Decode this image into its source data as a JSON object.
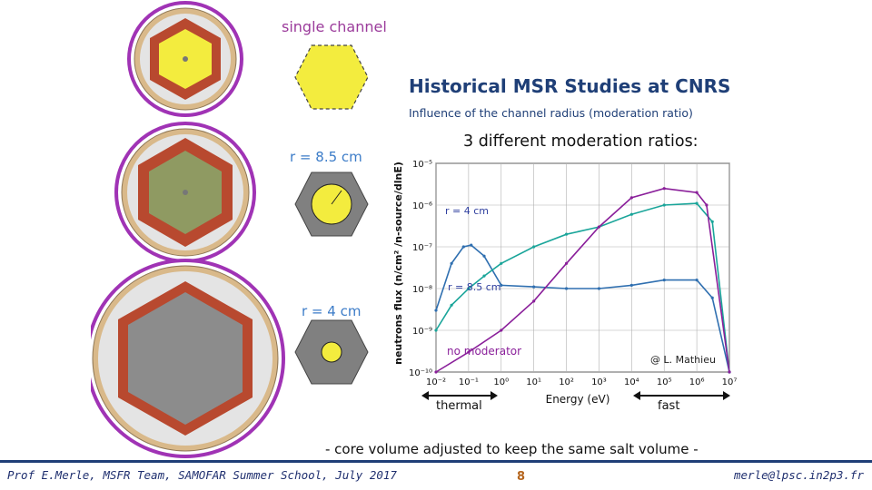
{
  "labels": {
    "single_channel": "single channel",
    "r_8_5": "r = 8.5 cm",
    "r_4": "r = 4 cm"
  },
  "title": "Historical MSR Studies at CNRS",
  "subtitle": "Influence of the channel radius (moderation ratio)",
  "heading": "3 different moderation ratios:",
  "chart_data": {
    "type": "line",
    "xlabel": "Energy (eV)",
    "ylabel": "neutrons flux (n/cm² /n-source/dlnE)",
    "x_scale": "log",
    "y_scale": "log",
    "xlim": [
      0.01,
      10000000
    ],
    "ylim": [
      1e-10,
      1e-05
    ],
    "x_ticks": [
      "10⁻²",
      "10⁻¹",
      "10⁰",
      "10¹",
      "10²",
      "10³",
      "10⁴",
      "10⁵",
      "10⁶",
      "10⁷"
    ],
    "y_ticks": [
      "10⁻⁵",
      "10⁻⁶",
      "10⁻⁷",
      "10⁻⁸",
      "10⁻⁹",
      "10⁻¹⁰"
    ],
    "grid": true,
    "series": [
      {
        "name": "r = 4 cm",
        "color": "#2f6fb0",
        "x": [
          0.01,
          0.03,
          0.07,
          0.12,
          0.3,
          1,
          10,
          100,
          1000,
          10000,
          100000,
          1000000,
          3000000,
          10000000
        ],
        "y": [
          3e-09,
          4e-08,
          1e-07,
          1.1e-07,
          6e-08,
          1.2e-08,
          1.1e-08,
          1e-08,
          1e-08,
          1.2e-08,
          1.6e-08,
          1.6e-08,
          6e-09,
          1e-10
        ]
      },
      {
        "name": "r = 8.5 cm",
        "color": "#1aa59a",
        "x": [
          0.01,
          0.03,
          0.1,
          0.3,
          1,
          10,
          100,
          1000,
          10000,
          100000,
          1000000,
          3000000,
          10000000
        ],
        "y": [
          1e-09,
          4e-09,
          1e-08,
          2e-08,
          4e-08,
          1e-07,
          2e-07,
          3e-07,
          6e-07,
          1e-06,
          1.1e-06,
          4e-07,
          1e-10
        ]
      },
      {
        "name": "no moderator",
        "color": "#8a1f9a",
        "x": [
          0.01,
          0.1,
          1,
          10,
          100,
          1000,
          10000,
          100000,
          1000000,
          2000000,
          10000000
        ],
        "y": [
          1e-10,
          3e-10,
          1e-09,
          5e-09,
          4e-08,
          3e-07,
          1.5e-06,
          2.5e-06,
          2e-06,
          1e-06,
          1e-10
        ]
      }
    ],
    "annotations": [
      "r = 4 cm",
      "r = 8.5 cm",
      "no moderator",
      "@ L. Mathieu"
    ]
  },
  "arrows": {
    "thermal": "thermal",
    "fast": "fast"
  },
  "note": "- core volume adjusted to keep the same salt volume -",
  "footer": {
    "left": "Prof E.Merle, MSFR Team, SAMOFAR Summer School, July 2017",
    "page": "8",
    "right": "merle@lpsc.in2p3.fr"
  },
  "colors": {
    "title": "#1f3f77",
    "channel_label": "#9b3b9b",
    "radius_label": "#3c7cc8",
    "page_number": "#b5651d",
    "core_ring": "#a033b5",
    "graphite": "#b8492f",
    "salt": "#f3ec3e"
  }
}
